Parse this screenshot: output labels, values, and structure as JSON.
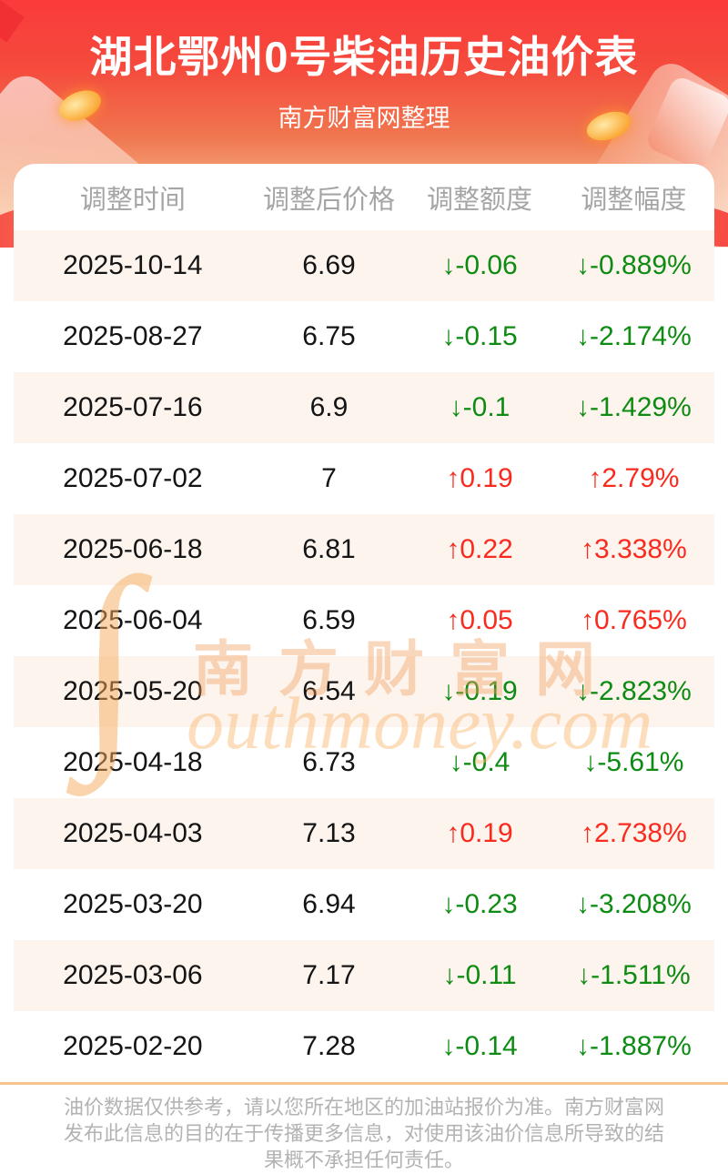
{
  "page": {
    "title": "湖北鄂州0号柴油历史油价表",
    "subtitle": "南方财富网整理"
  },
  "table": {
    "columns": [
      "调整时间",
      "调整后价格",
      "调整额度",
      "调整幅度"
    ],
    "arrows": {
      "up": "↑",
      "down": "↓"
    },
    "rows": [
      {
        "date": "2025-10-14",
        "price": "6.69",
        "change": "-0.06",
        "percent": "-0.889%",
        "direction": "down"
      },
      {
        "date": "2025-08-27",
        "price": "6.75",
        "change": "-0.15",
        "percent": "-2.174%",
        "direction": "down"
      },
      {
        "date": "2025-07-16",
        "price": "6.9",
        "change": "-0.1",
        "percent": "-1.429%",
        "direction": "down"
      },
      {
        "date": "2025-07-02",
        "price": "7",
        "change": "0.19",
        "percent": "2.79%",
        "direction": "up"
      },
      {
        "date": "2025-06-18",
        "price": "6.81",
        "change": "0.22",
        "percent": "3.338%",
        "direction": "up"
      },
      {
        "date": "2025-06-04",
        "price": "6.59",
        "change": "0.05",
        "percent": "0.765%",
        "direction": "up"
      },
      {
        "date": "2025-05-20",
        "price": "6.54",
        "change": "-0.19",
        "percent": "-2.823%",
        "direction": "down"
      },
      {
        "date": "2025-04-18",
        "price": "6.73",
        "change": "-0.4",
        "percent": "-5.61%",
        "direction": "down"
      },
      {
        "date": "2025-04-03",
        "price": "7.13",
        "change": "0.19",
        "percent": "2.738%",
        "direction": "up"
      },
      {
        "date": "2025-03-20",
        "price": "6.94",
        "change": "-0.23",
        "percent": "-3.208%",
        "direction": "down"
      },
      {
        "date": "2025-03-06",
        "price": "7.17",
        "change": "-0.11",
        "percent": "-1.511%",
        "direction": "down"
      },
      {
        "date": "2025-02-20",
        "price": "7.28",
        "change": "-0.14",
        "percent": "-1.887%",
        "direction": "down"
      }
    ]
  },
  "chart_data": {
    "type": "table",
    "title": "湖北鄂州0号柴油历史油价表",
    "subtitle": "南方财富网整理",
    "columns": [
      "调整时间",
      "调整后价格",
      "调整额度",
      "调整幅度"
    ],
    "rows": [
      [
        "2025-10-14",
        6.69,
        -0.06,
        "-0.889%"
      ],
      [
        "2025-08-27",
        6.75,
        -0.15,
        "-2.174%"
      ],
      [
        "2025-07-16",
        6.9,
        -0.1,
        "-1.429%"
      ],
      [
        "2025-07-02",
        7,
        0.19,
        "2.79%"
      ],
      [
        "2025-06-18",
        6.81,
        0.22,
        "3.338%"
      ],
      [
        "2025-06-04",
        6.59,
        0.05,
        "0.765%"
      ],
      [
        "2025-05-20",
        6.54,
        -0.19,
        "-2.823%"
      ],
      [
        "2025-04-18",
        6.73,
        -0.4,
        "-5.61%"
      ],
      [
        "2025-04-03",
        7.13,
        0.19,
        "2.738%"
      ],
      [
        "2025-03-20",
        6.94,
        -0.23,
        "-3.208%"
      ],
      [
        "2025-03-06",
        7.17,
        -0.11,
        "-1.511%"
      ],
      [
        "2025-02-20",
        7.28,
        -0.14,
        "-1.887%"
      ]
    ],
    "notes": "green down arrows for decreases, red up arrows for increases"
  },
  "watermark": {
    "swash": "∫",
    "cn": "南方财富网",
    "en": "outhmoney.com"
  },
  "footer": {
    "lines": [
      "油价数据仅供参考，请以您所在地区的加油站报价为准。南方财富网",
      "发布此信息的目的在于传播更多信息，对使用该油价信息所导致的结",
      "果概不承担任何责任。"
    ]
  },
  "colors": {
    "up": "#f92b1f",
    "down": "#0e8b12",
    "hero_top": "#fa3a3b",
    "stripe": "#fdf4ee",
    "divider": "#f7c48e",
    "header_text": "#a5a5a5",
    "footer_text": "#b3b3b3"
  }
}
